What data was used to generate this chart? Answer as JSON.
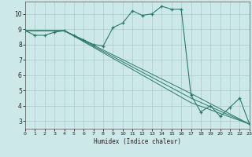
{
  "xlabel": "Humidex (Indice chaleur)",
  "xlim": [
    0,
    23
  ],
  "ylim": [
    2.5,
    10.8
  ],
  "yticks": [
    3,
    4,
    5,
    6,
    7,
    8,
    9,
    10
  ],
  "xticks": [
    0,
    1,
    2,
    3,
    4,
    5,
    6,
    7,
    8,
    9,
    10,
    11,
    12,
    13,
    14,
    15,
    16,
    17,
    18,
    19,
    20,
    21,
    22,
    23
  ],
  "bg_color": "#cce8e8",
  "grid_color": "#aacccc",
  "line_color": "#2d7a6a",
  "main_series": {
    "x": [
      0,
      1,
      2,
      3,
      4,
      5,
      6,
      7,
      8,
      9,
      10,
      11,
      12,
      13,
      14,
      15,
      16,
      17,
      18,
      19,
      20,
      21,
      22,
      23
    ],
    "y": [
      8.9,
      8.6,
      8.6,
      8.8,
      8.9,
      8.6,
      8.3,
      8.0,
      7.9,
      9.1,
      9.4,
      10.2,
      9.9,
      10.0,
      10.5,
      10.3,
      10.3,
      4.7,
      3.6,
      4.0,
      3.3,
      3.9,
      4.5,
      2.8
    ]
  },
  "trend_lines": [
    {
      "x": [
        0,
        4,
        17,
        23
      ],
      "y": [
        8.9,
        8.9,
        4.8,
        2.8
      ]
    },
    {
      "x": [
        0,
        4,
        17,
        23
      ],
      "y": [
        8.9,
        8.9,
        4.5,
        2.8
      ]
    },
    {
      "x": [
        0,
        4,
        17,
        23
      ],
      "y": [
        8.9,
        8.9,
        4.2,
        2.8
      ]
    }
  ]
}
